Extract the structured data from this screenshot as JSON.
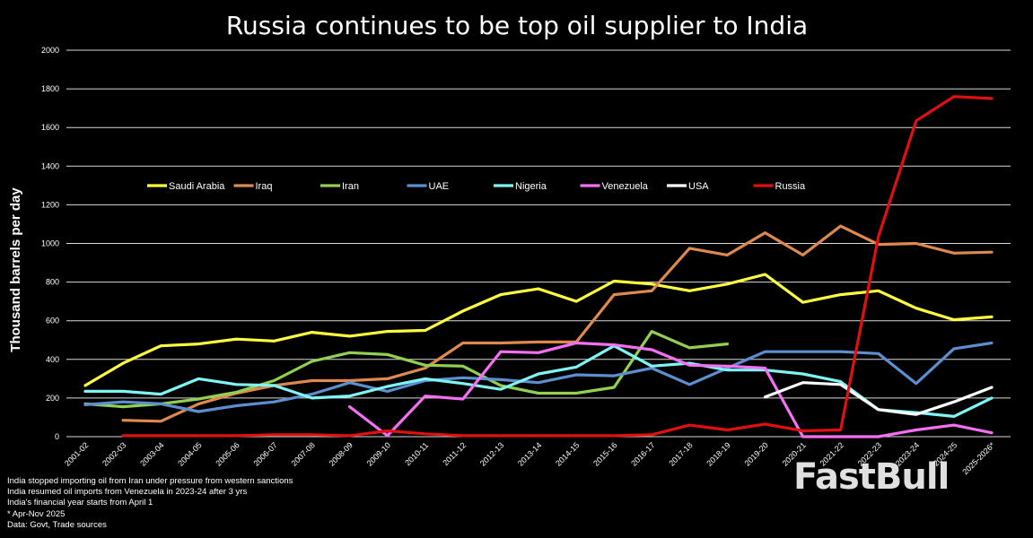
{
  "chart_data": {
    "type": "line",
    "title": "Russia continues to be top oil supplier to India",
    "ylabel": "Thousand barrels per day",
    "xlabel": "",
    "ylim": [
      0,
      2000
    ],
    "yticks": [
      "0",
      "200",
      "400",
      "600",
      "800",
      "1000",
      "1200",
      "1400",
      "1600",
      "1800",
      "2000"
    ],
    "grid": true,
    "legend_position": "upper-left inside plot",
    "categories": [
      "2001-02",
      "2002-03",
      "2003-04",
      "2004-05",
      "2005-06",
      "2006-07",
      "2007-08",
      "2008-09",
      "2009-10",
      "2010-11",
      "2011-12",
      "2012-13",
      "2013-14",
      "2014-15",
      "2015-16",
      "2016-17",
      "2017-18",
      "2018-19",
      "2019-20",
      "2020-21",
      "2021-22",
      "2022-23",
      "2023-24",
      "2024-25",
      "2025-2026*"
    ],
    "series": [
      {
        "name": "Saudi Arabia",
        "color": "#ffff40",
        "values": [
          265,
          380,
          470,
          480,
          505,
          495,
          540,
          520,
          545,
          550,
          650,
          735,
          765,
          700,
          805,
          790,
          755,
          790,
          840,
          695,
          735,
          755,
          665,
          605,
          620
        ]
      },
      {
        "name": "Iraq",
        "color": "#e0894e",
        "values": [
          null,
          85,
          80,
          170,
          225,
          265,
          290,
          290,
          300,
          355,
          485,
          485,
          490,
          490,
          735,
          755,
          975,
          940,
          1055,
          940,
          1090,
          995,
          1000,
          950,
          955
        ]
      },
      {
        "name": "Iran",
        "color": "#92d050",
        "values": [
          170,
          155,
          170,
          195,
          230,
          290,
          390,
          435,
          425,
          370,
          365,
          265,
          225,
          225,
          255,
          545,
          460,
          480,
          null,
          null,
          null,
          null,
          null,
          null,
          null
        ]
      },
      {
        "name": "UAE",
        "color": "#5b8fd0",
        "values": [
          165,
          180,
          170,
          130,
          160,
          180,
          220,
          280,
          235,
          290,
          305,
          295,
          280,
          320,
          315,
          355,
          270,
          355,
          440,
          440,
          440,
          430,
          275,
          455,
          485
        ]
      },
      {
        "name": "Nigeria",
        "color": "#7ff5f5",
        "values": [
          235,
          235,
          220,
          300,
          270,
          265,
          200,
          210,
          260,
          300,
          275,
          245,
          325,
          360,
          470,
          365,
          380,
          345,
          345,
          325,
          285,
          140,
          125,
          105,
          200
        ]
      },
      {
        "name": "Venezuela",
        "color": "#f570f5",
        "values": [
          null,
          null,
          null,
          null,
          null,
          null,
          null,
          155,
          5,
          210,
          195,
          440,
          435,
          485,
          475,
          450,
          370,
          365,
          355,
          0,
          0,
          0,
          35,
          60,
          20
        ]
      },
      {
        "name": "USA",
        "color": "#ffffff",
        "values": [
          null,
          null,
          null,
          null,
          null,
          null,
          null,
          null,
          null,
          null,
          null,
          null,
          null,
          null,
          null,
          null,
          null,
          null,
          205,
          280,
          270,
          140,
          115,
          180,
          255
        ]
      },
      {
        "name": "Russia",
        "color": "#e01010",
        "values": [
          null,
          5,
          5,
          5,
          5,
          10,
          10,
          5,
          30,
          15,
          5,
          5,
          5,
          5,
          5,
          10,
          60,
          35,
          65,
          30,
          35,
          1035,
          1635,
          1760,
          1750
        ]
      }
    ],
    "notes": [
      "India stopped importing oil from Iran under pressure from western sanctions",
      "India resumed oil imports from Venezuela in 2023-24 after 3 yrs",
      "India's financial year starts from April 1",
      "* Apr-Nov 2025",
      "Data: Govt, Trade sources"
    ],
    "colors": {
      "background": "#000000",
      "grid": "#d9d9d9",
      "text": "#ffffff"
    }
  },
  "watermark": {
    "text": "FastBull"
  }
}
